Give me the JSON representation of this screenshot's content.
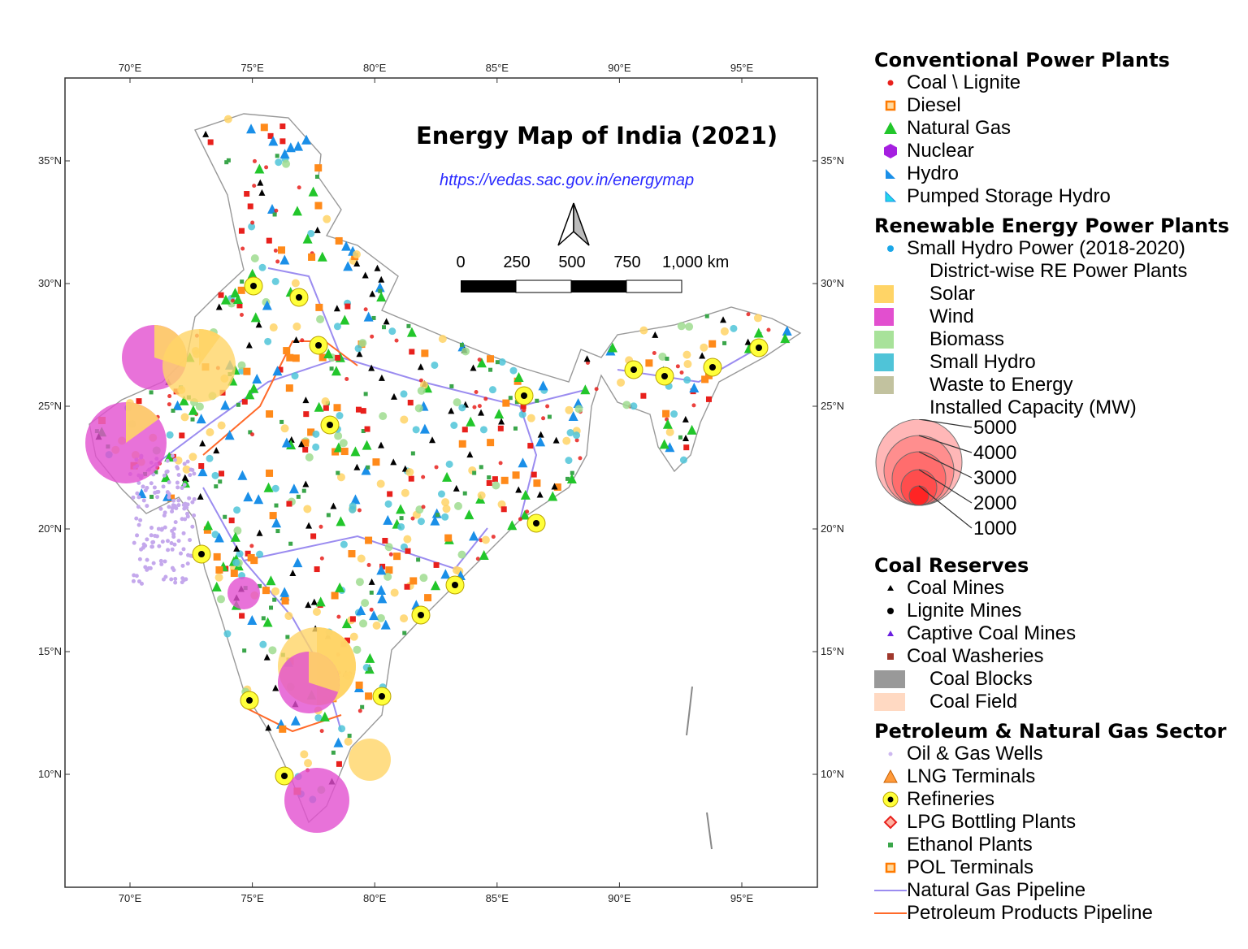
{
  "map": {
    "title": "Energy Map of India (2021)",
    "url": "https://vedas.sac.gov.in/energymap",
    "lon_ticks": [
      "70°E",
      "75°E",
      "80°E",
      "85°E",
      "90°E",
      "95°E"
    ],
    "lat_ticks": [
      "35°N",
      "30°N",
      "25°N",
      "20°N",
      "15°N",
      "10°N"
    ],
    "scale_bar": {
      "labels": [
        "0",
        "250",
        "500",
        "750",
        "1,000 km"
      ]
    },
    "north_arrow": "north-arrow-icon",
    "colors": {
      "boundary": "#888888",
      "gas_pipeline": "#9b8cf0",
      "petroleum_pipeline": "#ff6a2a",
      "coal": "#e8201c",
      "solar": "#ffd466",
      "wind": "#e24fcf",
      "biomass": "#9fdc8f",
      "small_hydro": "#4fc4d8"
    }
  },
  "legend": {
    "conventional": {
      "heading": "Conventional Power Plants",
      "items": [
        {
          "label": "Coal \\ Lignite",
          "icon": "red-dot-icon"
        },
        {
          "label": "Diesel",
          "icon": "orange-square-icon"
        },
        {
          "label": "Natural Gas",
          "icon": "green-triangle-icon"
        },
        {
          "label": "Nuclear",
          "icon": "purple-hexagon-icon"
        },
        {
          "label": "Hydro",
          "icon": "blue-flag-icon"
        },
        {
          "label": "Pumped Storage Hydro",
          "icon": "cyan-flag-icon"
        }
      ]
    },
    "renewable": {
      "heading": "Renewable Energy Power Plants",
      "small_hydro": "Small Hydro Power (2018-2020)",
      "district_wise": "District-wise RE Power Plants",
      "items": [
        {
          "label": "Solar",
          "color": "#ffd466"
        },
        {
          "label": "Wind",
          "color": "#e24fcf"
        },
        {
          "label": "Biomass",
          "color": "#a8e29a"
        },
        {
          "label": "Small Hydro",
          "color": "#4fc4d8"
        },
        {
          "label": "Waste to Energy",
          "color": "#c2c29f"
        }
      ],
      "capacity_title": "Installed Capacity (MW)",
      "capacity_values": [
        "5000",
        "4000",
        "3000",
        "2000",
        "1000"
      ]
    },
    "coal": {
      "heading": "Coal Reserves",
      "items": [
        {
          "label": "Coal Mines",
          "icon": "black-triangle-icon"
        },
        {
          "label": "Lignite Mines",
          "icon": "black-dot-icon"
        },
        {
          "label": "Captive Coal Mines",
          "icon": "purple-triangle-icon"
        },
        {
          "label": "Coal Washeries",
          "icon": "brown-square-icon"
        },
        {
          "label": "Coal Blocks",
          "color": "#999999"
        },
        {
          "label": "Coal Field",
          "color": "#ffd9c2"
        }
      ]
    },
    "petroleum": {
      "heading": "Petroleum & Natural Gas Sector",
      "items": [
        {
          "label": "Oil & Gas Wells",
          "icon": "lilac-dot-icon"
        },
        {
          "label": "LNG Terminals",
          "icon": "orange-triangle-icon"
        },
        {
          "label": "Refineries",
          "icon": "yellow-ring-icon"
        },
        {
          "label": "LPG Bottling Plants",
          "icon": "red-diamond-icon"
        },
        {
          "label": "Ethanol Plants",
          "icon": "green-square-icon"
        },
        {
          "label": "POL Terminals",
          "icon": "orange-square-icon"
        },
        {
          "label": "Natural Gas Pipeline",
          "icon": "purple-line-icon"
        },
        {
          "label": "Petroleum Products Pipeline",
          "icon": "orange-line-icon"
        }
      ]
    }
  }
}
